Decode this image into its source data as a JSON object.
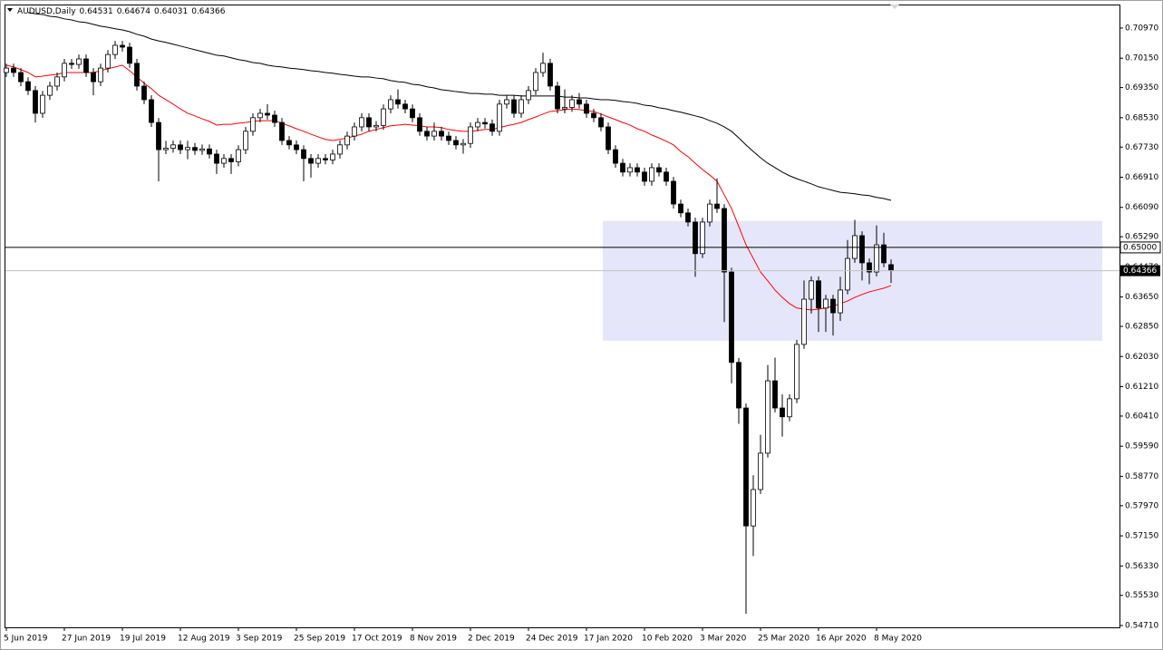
{
  "chart_data": {
    "type": "candlestick",
    "title": "AUDUSD,Daily",
    "categories": [
      "5 Jun 2019",
      null,
      null,
      null,
      null,
      null,
      null,
      null,
      "27 Jun 2019",
      null,
      null,
      null,
      null,
      null,
      null,
      null,
      "19 Jul 2019",
      null,
      null,
      null,
      null,
      null,
      null,
      null,
      "12 Aug 2019",
      null,
      null,
      null,
      null,
      null,
      null,
      null,
      "3 Sep 2019",
      null,
      null,
      null,
      null,
      null,
      null,
      null,
      "25 Sep 2019",
      null,
      null,
      null,
      null,
      null,
      null,
      null,
      "17 Oct 2019",
      null,
      null,
      null,
      null,
      null,
      null,
      null,
      "8 Nov 2019",
      null,
      null,
      null,
      null,
      null,
      null,
      null,
      "2 Dec 2019",
      null,
      null,
      null,
      null,
      null,
      null,
      null,
      "24 Dec 2019",
      null,
      null,
      null,
      null,
      null,
      null,
      null,
      "17 Jan 2020",
      null,
      null,
      null,
      null,
      null,
      null,
      null,
      "10 Feb 2020",
      null,
      null,
      null,
      null,
      null,
      null,
      null,
      "3 Mar 2020",
      null,
      null,
      null,
      null,
      null,
      null,
      null,
      "25 Mar 2020",
      null,
      null,
      null,
      null,
      null,
      null,
      null,
      "16 Apr 2020",
      null,
      null,
      null,
      null,
      null,
      null,
      null,
      "8 May 2020",
      null,
      null
    ],
    "open": [
      0.6976,
      0.6988,
      0.6976,
      0.6951,
      0.6927,
      0.6865,
      0.6914,
      0.6939,
      0.6964,
      0.7001,
      0.6998,
      0.7013,
      0.6976,
      0.6951,
      0.6988,
      0.7025,
      0.705,
      0.7045,
      0.7001,
      0.6939,
      0.6902,
      0.684,
      0.6766,
      0.677,
      0.6779,
      0.6766,
      0.6772,
      0.6764,
      0.6768,
      0.6754,
      0.6729,
      0.6742,
      0.6733,
      0.6766,
      0.6816,
      0.6853,
      0.6865,
      0.686,
      0.684,
      0.6791,
      0.6779,
      0.6766,
      0.6742,
      0.6729,
      0.6742,
      0.6738,
      0.6754,
      0.6779,
      0.6803,
      0.6828,
      0.6853,
      0.6828,
      0.6832,
      0.6877,
      0.6902,
      0.689,
      0.6877,
      0.6853,
      0.6816,
      0.6803,
      0.6816,
      0.6803,
      0.6791,
      0.6779,
      0.6783,
      0.6828,
      0.684,
      0.6836,
      0.6816,
      0.689,
      0.6902,
      0.6865,
      0.6902,
      0.6927,
      0.6976,
      0.7001,
      0.6939,
      0.6877,
      0.6881,
      0.6902,
      0.689,
      0.6865,
      0.6853,
      0.6828,
      0.6766,
      0.6729,
      0.6705,
      0.6717,
      0.6705,
      0.668,
      0.6717,
      0.6705,
      0.668,
      0.6618,
      0.6594,
      0.6569,
      0.6483,
      0.6569,
      0.6618,
      0.6606,
      0.6433,
      0.6187,
      0.6063,
      0.5742,
      0.5841,
      0.594,
      0.6137,
      0.6063,
      0.6039,
      0.6088,
      0.6236,
      0.6359,
      0.6409,
      0.6335,
      0.6359,
      0.6322,
      0.6384,
      0.647,
      0.6532,
      0.6458,
      0.6433,
      0.6507,
      0.64531
    ],
    "high": [
      0.7,
      0.7,
      0.6988,
      0.6963,
      0.6939,
      0.6926,
      0.6951,
      0.6976,
      0.7013,
      0.7013,
      0.7025,
      0.7025,
      0.6988,
      0.7,
      0.7037,
      0.7062,
      0.7062,
      0.7057,
      0.7013,
      0.6951,
      0.6914,
      0.6852,
      0.679,
      0.6791,
      0.6791,
      0.679,
      0.6784,
      0.678,
      0.678,
      0.6766,
      0.6754,
      0.6754,
      0.6778,
      0.6828,
      0.6865,
      0.6877,
      0.689,
      0.6872,
      0.6852,
      0.6803,
      0.6791,
      0.6778,
      0.6754,
      0.6754,
      0.6754,
      0.6766,
      0.6791,
      0.6815,
      0.684,
      0.6865,
      0.6865,
      0.6844,
      0.6889,
      0.6914,
      0.693,
      0.6902,
      0.6889,
      0.6865,
      0.6828,
      0.684,
      0.6828,
      0.6815,
      0.6803,
      0.6795,
      0.684,
      0.6852,
      0.6852,
      0.6848,
      0.6902,
      0.6914,
      0.6914,
      0.6914,
      0.6939,
      0.6988,
      0.703,
      0.7013,
      0.6951,
      0.693,
      0.6914,
      0.692,
      0.6902,
      0.6877,
      0.6865,
      0.684,
      0.6778,
      0.6741,
      0.6729,
      0.6729,
      0.6717,
      0.6729,
      0.6729,
      0.6717,
      0.6692,
      0.663,
      0.6606,
      0.6581,
      0.6581,
      0.663,
      0.6688,
      0.6618,
      0.6445,
      0.6199,
      0.6075,
      0.588,
      0.599,
      0.618,
      0.62,
      0.61,
      0.61,
      0.6248,
      0.641,
      0.6421,
      0.6421,
      0.6371,
      0.6371,
      0.642,
      0.652,
      0.6575,
      0.6544,
      0.647,
      0.656,
      0.654,
      0.64674
    ],
    "low": [
      0.6964,
      0.6964,
      0.6939,
      0.6915,
      0.684,
      0.6853,
      0.6902,
      0.6927,
      0.6952,
      0.6986,
      0.6986,
      0.6964,
      0.6914,
      0.6939,
      0.6976,
      0.7013,
      0.7033,
      0.6989,
      0.6927,
      0.689,
      0.6828,
      0.668,
      0.6754,
      0.6758,
      0.6754,
      0.674,
      0.6752,
      0.6752,
      0.6742,
      0.67,
      0.6717,
      0.67,
      0.6721,
      0.6754,
      0.6804,
      0.6841,
      0.6848,
      0.6828,
      0.6779,
      0.6767,
      0.6754,
      0.668,
      0.669,
      0.6717,
      0.6726,
      0.6726,
      0.6742,
      0.6767,
      0.6791,
      0.6816,
      0.6816,
      0.6816,
      0.682,
      0.6865,
      0.6878,
      0.6865,
      0.6841,
      0.6804,
      0.6791,
      0.6791,
      0.6791,
      0.6779,
      0.6767,
      0.6755,
      0.6771,
      0.6816,
      0.6824,
      0.6804,
      0.6804,
      0.6878,
      0.6853,
      0.6853,
      0.689,
      0.6915,
      0.6964,
      0.6927,
      0.6865,
      0.6865,
      0.6869,
      0.6878,
      0.6853,
      0.6841,
      0.6816,
      0.6754,
      0.6717,
      0.6693,
      0.6693,
      0.6693,
      0.6668,
      0.6668,
      0.6693,
      0.6668,
      0.6606,
      0.6582,
      0.6557,
      0.642,
      0.6471,
      0.6557,
      0.6594,
      0.6297,
      0.613,
      0.602,
      0.5503,
      0.566,
      0.5829,
      0.5928,
      0.6051,
      0.5985,
      0.6027,
      0.6076,
      0.6224,
      0.632,
      0.627,
      0.627,
      0.626,
      0.63,
      0.6372,
      0.6458,
      0.641,
      0.64,
      0.6421,
      0.6446,
      0.64031
    ],
    "close": [
      0.6988,
      0.6976,
      0.6951,
      0.6927,
      0.6865,
      0.6914,
      0.6939,
      0.6964,
      0.7001,
      0.6998,
      0.7013,
      0.6976,
      0.6951,
      0.6988,
      0.7025,
      0.705,
      0.7045,
      0.7001,
      0.6939,
      0.6902,
      0.684,
      0.6766,
      0.677,
      0.6779,
      0.6766,
      0.6772,
      0.6764,
      0.6768,
      0.6754,
      0.6729,
      0.6742,
      0.6733,
      0.6766,
      0.6816,
      0.6853,
      0.6865,
      0.686,
      0.684,
      0.6791,
      0.6779,
      0.6766,
      0.6742,
      0.6729,
      0.6742,
      0.6738,
      0.6754,
      0.6779,
      0.6803,
      0.6828,
      0.6853,
      0.6828,
      0.6832,
      0.6877,
      0.6902,
      0.689,
      0.6877,
      0.6853,
      0.6816,
      0.6803,
      0.6816,
      0.6803,
      0.6791,
      0.6779,
      0.6783,
      0.6828,
      0.684,
      0.6836,
      0.6816,
      0.689,
      0.6902,
      0.6865,
      0.6902,
      0.6927,
      0.6976,
      0.7001,
      0.6939,
      0.6877,
      0.6881,
      0.6902,
      0.689,
      0.6865,
      0.6853,
      0.6828,
      0.6766,
      0.6729,
      0.6705,
      0.6717,
      0.6705,
      0.668,
      0.6717,
      0.6705,
      0.668,
      0.6618,
      0.6594,
      0.6569,
      0.6483,
      0.6569,
      0.6618,
      0.6606,
      0.6433,
      0.6187,
      0.6063,
      0.5742,
      0.5841,
      0.594,
      0.6137,
      0.6063,
      0.6039,
      0.6088,
      0.6236,
      0.6359,
      0.6409,
      0.6335,
      0.6359,
      0.6322,
      0.6384,
      0.647,
      0.6532,
      0.6458,
      0.6433,
      0.6507,
      0.6458,
      0.64366
    ],
    "up_color": "#ffffff",
    "down_color": "#000000",
    "wick_color": "#000000",
    "ma_lines": [
      {
        "color": "#ff0000",
        "values": [
          0.6996,
          0.6991,
          0.6984,
          0.6976,
          0.6964,
          0.6966,
          0.6969,
          0.6971,
          0.6976,
          0.6976,
          0.6976,
          0.6976,
          0.6976,
          0.6981,
          0.6986,
          0.6991,
          0.6996,
          0.6981,
          0.6964,
          0.6947,
          0.6932,
          0.6914,
          0.6902,
          0.689,
          0.6877,
          0.6865,
          0.6858,
          0.685,
          0.6843,
          0.6833,
          0.6835,
          0.6835,
          0.6838,
          0.684,
          0.6843,
          0.6845,
          0.6845,
          0.6845,
          0.6838,
          0.6831,
          0.6823,
          0.6816,
          0.6808,
          0.6801,
          0.6794,
          0.6791,
          0.6794,
          0.6798,
          0.6803,
          0.6808,
          0.6816,
          0.6821,
          0.6826,
          0.6831,
          0.6833,
          0.6835,
          0.6833,
          0.6831,
          0.6828,
          0.6828,
          0.6826,
          0.6821,
          0.6818,
          0.6816,
          0.6816,
          0.6818,
          0.6821,
          0.6821,
          0.6826,
          0.6831,
          0.6835,
          0.684,
          0.6848,
          0.6855,
          0.6863,
          0.687,
          0.6872,
          0.6875,
          0.6877,
          0.6875,
          0.6872,
          0.687,
          0.6863,
          0.6855,
          0.6848,
          0.684,
          0.6833,
          0.6823,
          0.6816,
          0.6806,
          0.6798,
          0.6789,
          0.6779,
          0.6761,
          0.6747,
          0.6729,
          0.6712,
          0.6697,
          0.668,
          0.6643,
          0.6606,
          0.6557,
          0.6507,
          0.647,
          0.6433,
          0.6409,
          0.6384,
          0.6364,
          0.6347,
          0.6335,
          0.6332,
          0.633,
          0.6332,
          0.6335,
          0.634,
          0.6347,
          0.6354,
          0.6364,
          0.6372,
          0.6379,
          0.6384,
          0.6389,
          0.6396
        ]
      },
      {
        "color": "#000000",
        "values": [
          null,
          null,
          null,
          0.7139,
          0.7136,
          0.7134,
          0.7129,
          0.7127,
          0.7122,
          0.7119,
          0.7114,
          0.7112,
          0.7107,
          0.7102,
          0.7099,
          0.7095,
          0.7092,
          0.7087,
          0.708,
          0.7075,
          0.7067,
          0.7062,
          0.7058,
          0.7053,
          0.7048,
          0.7043,
          0.7038,
          0.7033,
          0.7028,
          0.7023,
          0.7021,
          0.7016,
          0.7011,
          0.7008,
          0.7003,
          0.7001,
          0.6996,
          0.6993,
          0.6991,
          0.6988,
          0.6986,
          0.6984,
          0.6981,
          0.6979,
          0.6976,
          0.6974,
          0.6971,
          0.6969,
          0.6966,
          0.6964,
          0.6964,
          0.6961,
          0.6959,
          0.6954,
          0.6951,
          0.6949,
          0.6944,
          0.6942,
          0.6937,
          0.6934,
          0.6929,
          0.6927,
          0.6924,
          0.6922,
          0.6919,
          0.6919,
          0.6917,
          0.6917,
          0.6914,
          0.6914,
          0.6914,
          0.6912,
          0.6912,
          0.6912,
          0.6912,
          0.6912,
          0.6912,
          0.6909,
          0.6909,
          0.6907,
          0.6907,
          0.6904,
          0.6902,
          0.6902,
          0.69,
          0.6897,
          0.6895,
          0.6892,
          0.6887,
          0.6885,
          0.688,
          0.6877,
          0.6872,
          0.6868,
          0.6863,
          0.6858,
          0.6853,
          0.6845,
          0.6838,
          0.6828,
          0.6816,
          0.6798,
          0.6779,
          0.6761,
          0.6744,
          0.6729,
          0.6717,
          0.6705,
          0.6695,
          0.6687,
          0.668,
          0.6673,
          0.6665,
          0.666,
          0.6655,
          0.665,
          0.6648,
          0.6646,
          0.6643,
          0.6641,
          0.6636,
          0.6633,
          0.6628
        ]
      }
    ],
    "zone": {
      "range": [
        0.6246,
        0.6572
      ],
      "color": "#e6e6fa"
    },
    "hlines": [
      {
        "value": 0.65,
        "label": "0.65000",
        "color": "#000000"
      }
    ],
    "bid_line_color": "#c0c0c0",
    "ylim": [
      0.5466,
      0.7161
    ],
    "yticks": [
      {
        "value": 0.7097,
        "label": "0.70970"
      },
      {
        "value": 0.7015,
        "label": "0.70150"
      },
      {
        "value": 0.6935,
        "label": "0.69350"
      },
      {
        "value": 0.6853,
        "label": "0.68530"
      },
      {
        "value": 0.6773,
        "label": "0.67730"
      },
      {
        "value": 0.6691,
        "label": "0.66910"
      },
      {
        "value": 0.6609,
        "label": "0.66090"
      },
      {
        "value": 0.6529,
        "label": "0.65290"
      },
      {
        "value": 0.6447,
        "label": "0.64470"
      },
      {
        "value": 0.6365,
        "label": "0.63650"
      },
      {
        "value": 0.6285,
        "label": "0.62850"
      },
      {
        "value": 0.6203,
        "label": "0.62030"
      },
      {
        "value": 0.6121,
        "label": "0.61210"
      },
      {
        "value": 0.6041,
        "label": "0.60410"
      },
      {
        "value": 0.5959,
        "label": "0.59590"
      },
      {
        "value": 0.5877,
        "label": "0.58770"
      },
      {
        "value": 0.5797,
        "label": "0.57970"
      },
      {
        "value": 0.5715,
        "label": "0.57150"
      },
      {
        "value": 0.5633,
        "label": "0.56330"
      },
      {
        "value": 0.5553,
        "label": "0.55530"
      },
      {
        "value": 0.5471,
        "label": "0.54710"
      }
    ],
    "grid": false
  }
}
